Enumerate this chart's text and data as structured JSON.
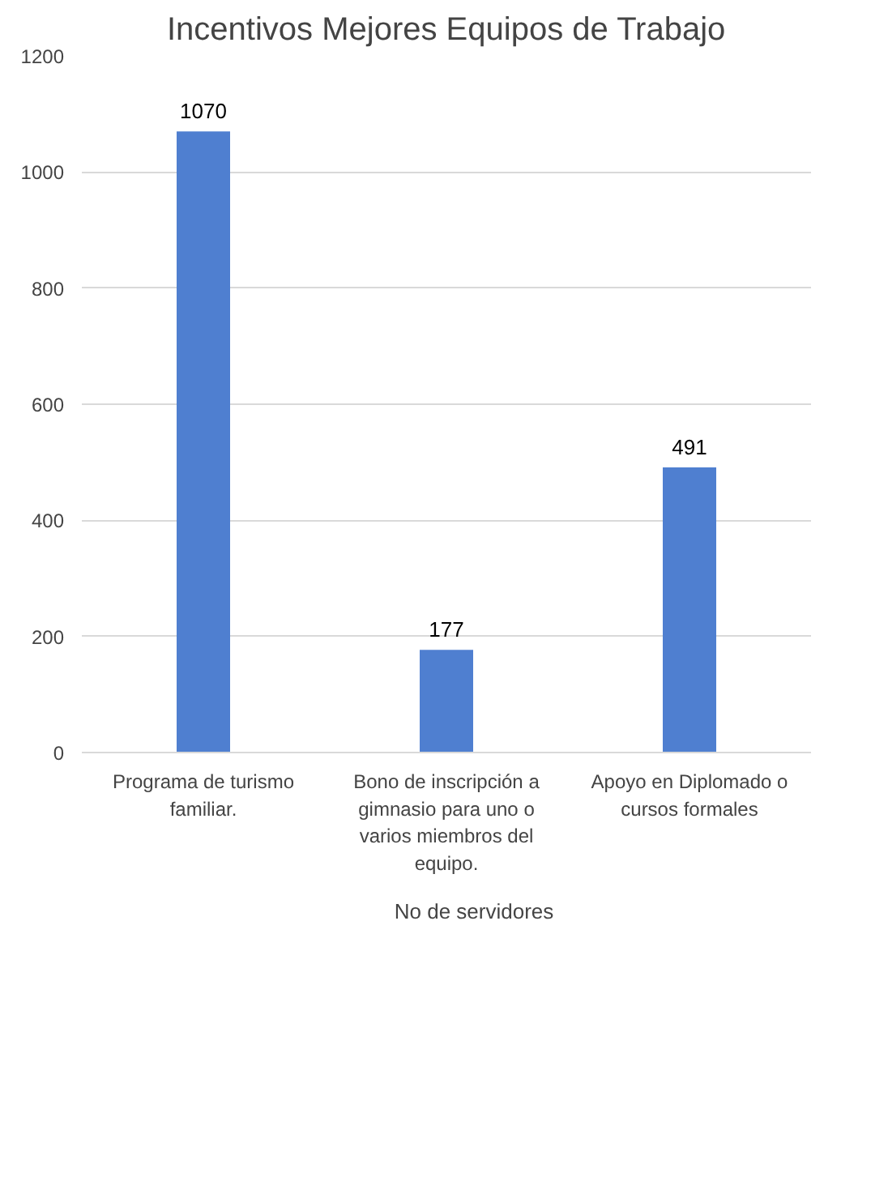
{
  "chart_data": {
    "type": "bar",
    "title": "Incentivos Mejores Equipos de Trabajo",
    "categories": [
      "Programa de turismo familiar.",
      "Bono de inscripción a gimnasio para uno o varios miembros del equipo.",
      "Apoyo en Diplomado o cursos formales"
    ],
    "series": [
      {
        "name": "No de servidores",
        "color": "#4f7fd0",
        "values": [
          1070,
          177,
          491
        ]
      }
    ],
    "ylim": [
      0,
      1200
    ],
    "yticks": [
      0,
      200,
      400,
      600,
      800,
      1000,
      1200
    ],
    "grid": "y",
    "legend": "bottom",
    "data_labels": true
  }
}
